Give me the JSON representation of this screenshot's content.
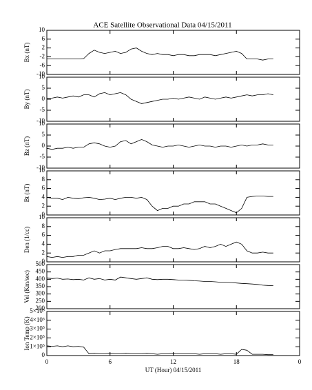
{
  "chart_data": [
    {
      "type": "line",
      "title": "ACE Satellite Observational Data   04/15/2011",
      "y_label": "Bx (nT)",
      "x": [
        0,
        0.5,
        1,
        1.5,
        2,
        2.5,
        3,
        3.5,
        4,
        4.5,
        5,
        5.5,
        6,
        6.5,
        7,
        7.5,
        8,
        8.5,
        9,
        9.5,
        10,
        10.5,
        11,
        11.5,
        12,
        12.5,
        13,
        13.5,
        14,
        14.5,
        15,
        15.5,
        16,
        16.5,
        17,
        17.5,
        18,
        18.5,
        19,
        19.5,
        20,
        20.5,
        21,
        21.5
      ],
      "values": [
        -3,
        -3,
        -3,
        -3,
        -3,
        -3,
        -3,
        -2.8,
        -0.5,
        1,
        0,
        -0.5,
        0,
        0.5,
        -0.5,
        0,
        1.5,
        2,
        0.5,
        -0.5,
        -1,
        -0.5,
        -1,
        -1,
        -1.5,
        -1,
        -1,
        -1.5,
        -1.5,
        -1,
        -1,
        -1,
        -1.5,
        -1,
        -0.5,
        0,
        0.5,
        -0.5,
        -3,
        -3,
        -3,
        -3.5,
        -3,
        -3
      ],
      "color": "#000000",
      "ylim": [
        -10,
        10
      ],
      "yticks": [
        -10,
        -6,
        -2,
        2,
        6,
        10
      ]
    },
    {
      "type": "line",
      "y_label": "By (nT)",
      "x": [
        0,
        0.5,
        1,
        1.5,
        2,
        2.5,
        3,
        3.5,
        4,
        4.5,
        5,
        5.5,
        6,
        6.5,
        7,
        7.5,
        8,
        8.5,
        9,
        9.5,
        10,
        10.5,
        11,
        11.5,
        12,
        12.5,
        13,
        13.5,
        14,
        14.5,
        15,
        15.5,
        16,
        16.5,
        17,
        17.5,
        18,
        18.5,
        19,
        19.5,
        20,
        20.5,
        21,
        21.5
      ],
      "values": [
        0.5,
        0.5,
        1,
        0.5,
        1,
        1.5,
        1,
        2,
        2,
        1,
        2.5,
        3,
        2,
        2.5,
        3,
        2,
        0,
        -1,
        -2,
        -1.5,
        -1,
        -0.5,
        0,
        0,
        0.5,
        0,
        0.5,
        1,
        0.5,
        0,
        1,
        0.5,
        0,
        0.5,
        1,
        0.5,
        1,
        1.5,
        2,
        1.5,
        2,
        2,
        2.5,
        2
      ],
      "color": "#000000",
      "ylim": [
        -10,
        10
      ],
      "yticks": [
        -10,
        -5,
        0,
        5,
        10
      ]
    },
    {
      "type": "line",
      "y_label": "Bz (nT)",
      "x": [
        0,
        0.5,
        1,
        1.5,
        2,
        2.5,
        3,
        3.5,
        4,
        4.5,
        5,
        5.5,
        6,
        6.5,
        7,
        7.5,
        8,
        8.5,
        9,
        9.5,
        10,
        10.5,
        11,
        11.5,
        12,
        12.5,
        13,
        13.5,
        14,
        14.5,
        15,
        15.5,
        16,
        16.5,
        17,
        17.5,
        18,
        18.5,
        19,
        19.5,
        20,
        20.5,
        21,
        21.5
      ],
      "values": [
        -1,
        -1.5,
        -1,
        -1,
        -0.5,
        -1,
        -0.5,
        -0.5,
        1,
        1.5,
        1,
        0,
        -0.5,
        0,
        2,
        2.5,
        1,
        2,
        3,
        2,
        0.5,
        0,
        -0.5,
        0,
        0,
        0.5,
        0,
        -0.5,
        0,
        0.5,
        0,
        0,
        -0.5,
        0,
        0,
        -0.5,
        0,
        0.5,
        0,
        0.5,
        0.5,
        1,
        0.5,
        0.5
      ],
      "color": "#000000",
      "ylim": [
        -10,
        10
      ],
      "yticks": [
        -10,
        -5,
        0,
        5,
        10
      ]
    },
    {
      "type": "line",
      "y_label": "Bt (nT)",
      "x": [
        0,
        0.5,
        1,
        1.5,
        2,
        2.5,
        3,
        3.5,
        4,
        4.5,
        5,
        5.5,
        6,
        6.5,
        7,
        7.5,
        8,
        8.5,
        9,
        9.5,
        10,
        10.5,
        11,
        11.5,
        12,
        12.5,
        13,
        13.5,
        14,
        14.5,
        15,
        15.5,
        16,
        16.5,
        17,
        17.5,
        18,
        18.5,
        19,
        19.5,
        20,
        20.5,
        21,
        21.5
      ],
      "values": [
        4,
        3.8,
        3.8,
        3.5,
        4,
        3.8,
        3.7,
        3.9,
        4,
        3.8,
        3.5,
        3.6,
        3.8,
        3.5,
        3.8,
        4,
        4,
        3.8,
        4,
        3.5,
        2,
        1,
        1.5,
        1.5,
        2,
        2,
        2.5,
        2.5,
        3,
        3,
        3,
        2.5,
        2.5,
        2,
        1.5,
        1,
        0.5,
        1.5,
        4,
        4.2,
        4.3,
        4.3,
        4.2,
        4.2
      ],
      "color": "#000000",
      "ylim": [
        0,
        10
      ],
      "yticks": [
        0,
        2,
        4,
        6,
        8,
        10
      ]
    },
    {
      "type": "line",
      "y_label": "Den (1/cc)",
      "x": [
        0,
        0.5,
        1,
        1.5,
        2,
        2.5,
        3,
        3.5,
        4,
        4.5,
        5,
        5.5,
        6,
        6.5,
        7,
        7.5,
        8,
        8.5,
        9,
        9.5,
        10,
        10.5,
        11,
        11.5,
        12,
        12.5,
        13,
        13.5,
        14,
        14.5,
        15,
        15.5,
        16,
        16.5,
        17,
        17.5,
        18,
        18.5,
        19,
        19.5,
        20,
        20.5,
        21,
        21.5
      ],
      "values": [
        1.2,
        1,
        1.2,
        1,
        1.2,
        1.2,
        1.5,
        1.5,
        2,
        2.5,
        2,
        2.5,
        2.5,
        2.8,
        3,
        3,
        3,
        3,
        3.2,
        3,
        3,
        3.2,
        3.5,
        3.5,
        3,
        3,
        3.2,
        3,
        2.8,
        3,
        3.5,
        3.2,
        3.5,
        4,
        3.5,
        4,
        4.5,
        4,
        2.5,
        2,
        2,
        2.2,
        2,
        2
      ],
      "color": "#000000",
      "ylim": [
        0,
        10
      ],
      "yticks": [
        0,
        2,
        4,
        6,
        8,
        10
      ]
    },
    {
      "type": "line",
      "y_label": "Vel (Km/sec)",
      "x": [
        0,
        0.5,
        1,
        1.5,
        2,
        2.5,
        3,
        3.5,
        4,
        4.5,
        5,
        5.5,
        6,
        6.5,
        7,
        7.5,
        8,
        8.5,
        9,
        9.5,
        10,
        10.5,
        11,
        11.5,
        12,
        12.5,
        13,
        13.5,
        14,
        14.5,
        15,
        15.5,
        16,
        16.5,
        17,
        17.5,
        18,
        18.5,
        19,
        19.5,
        20,
        20.5,
        21,
        21.5
      ],
      "values": [
        410,
        405,
        408,
        400,
        402,
        398,
        400,
        395,
        410,
        400,
        405,
        395,
        400,
        395,
        415,
        410,
        405,
        400,
        405,
        410,
        400,
        398,
        400,
        400,
        398,
        395,
        395,
        393,
        390,
        388,
        385,
        385,
        383,
        380,
        380,
        378,
        375,
        372,
        370,
        368,
        365,
        360,
        358,
        357
      ],
      "color": "#000000",
      "ylim": [
        200,
        500
      ],
      "yticks": [
        200,
        250,
        300,
        350,
        400,
        450,
        500
      ]
    },
    {
      "type": "line",
      "y_label": "Ion Temp (K)",
      "x_label": "UT (Hour)  04/15/2011",
      "x": [
        0,
        0.5,
        1,
        1.5,
        2,
        2.5,
        3,
        3.5,
        4,
        4.5,
        5,
        5.5,
        6,
        6.5,
        7,
        7.5,
        8,
        8.5,
        9,
        9.5,
        10,
        10.5,
        11,
        11.5,
        12,
        12.5,
        13,
        13.5,
        14,
        14.5,
        15,
        15.5,
        16,
        16.5,
        17,
        17.5,
        18,
        18.5,
        19,
        19.5,
        20,
        20.5,
        21,
        21.5
      ],
      "values": [
        110000,
        105000,
        110000,
        100000,
        110000,
        100000,
        105000,
        95000,
        20000,
        25000,
        20000,
        20000,
        25000,
        20000,
        20000,
        25000,
        20000,
        20000,
        20000,
        25000,
        20000,
        15000,
        20000,
        20000,
        25000,
        20000,
        20000,
        20000,
        20000,
        15000,
        20000,
        20000,
        20000,
        15000,
        20000,
        20000,
        15000,
        70000,
        60000,
        15000,
        15000,
        15000,
        10000,
        10000
      ],
      "color": "#000000",
      "ylim": [
        0,
        500000
      ],
      "yticks": [
        0,
        {
          "value": 100000,
          "label": "1×10⁵"
        },
        {
          "value": 200000,
          "label": "2×10⁵"
        },
        {
          "value": 300000,
          "label": "3×10⁵"
        },
        {
          "value": 400000,
          "label": "4×10⁵"
        },
        {
          "value": 500000,
          "label": "5×10⁵"
        }
      ],
      "xlim": [
        0,
        24
      ],
      "xticks": [
        0,
        6,
        12,
        18,
        {
          "value": 24,
          "label": "0"
        }
      ]
    }
  ]
}
